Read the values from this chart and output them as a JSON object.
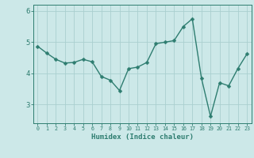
{
  "x": [
    0,
    1,
    2,
    3,
    4,
    5,
    6,
    7,
    8,
    9,
    10,
    11,
    12,
    13,
    14,
    15,
    16,
    17,
    18,
    19,
    20,
    21,
    22,
    23
  ],
  "y": [
    4.87,
    4.65,
    4.45,
    4.33,
    4.35,
    4.45,
    4.37,
    3.9,
    3.78,
    3.45,
    4.15,
    4.2,
    4.35,
    4.95,
    5.0,
    5.05,
    5.5,
    5.75,
    3.85,
    2.62,
    3.7,
    3.6,
    4.15,
    4.62
  ],
  "xlabel": "Humidex (Indice chaleur)",
  "bg_color": "#cce8e8",
  "line_color": "#2e7d70",
  "grid_color": "#aacfcf",
  "tick_color": "#2e7d70",
  "ylim_min": 2.4,
  "ylim_max": 6.2,
  "yticks": [
    3,
    4,
    5,
    6
  ],
  "xticks": [
    0,
    1,
    2,
    3,
    4,
    5,
    6,
    7,
    8,
    9,
    10,
    11,
    12,
    13,
    14,
    15,
    16,
    17,
    18,
    19,
    20,
    21,
    22,
    23
  ],
  "marker_size": 2.5,
  "line_width": 1.0
}
